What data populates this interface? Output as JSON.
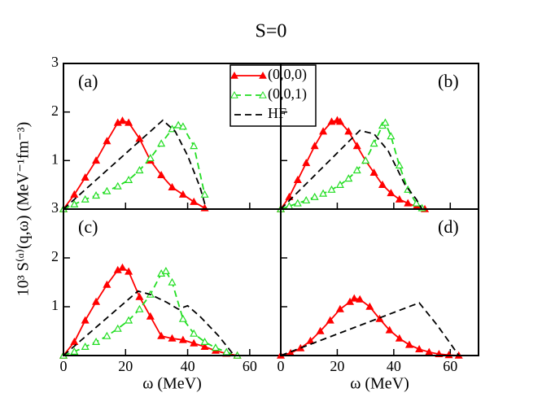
{
  "title": "S=0",
  "ylabel": "10³ S⁽ᵅ⁾(q,ω) (MeV⁻¹fm⁻³)",
  "chart_data": [
    {
      "type": "line",
      "label": "(a)",
      "xlim": [
        0,
        70
      ],
      "ylim": [
        0,
        3
      ],
      "xticks": [
        0,
        20,
        40,
        60
      ],
      "yticks": [
        1,
        2,
        3
      ],
      "show_xtick_labels": false,
      "show_ytick_labels": true,
      "legend": "upper center",
      "series": [
        {
          "name": "(0,0,0)",
          "color": "#ff0000",
          "dash": "solid",
          "marker": "filled-triangle",
          "x": [
            0,
            3.5,
            7,
            10.5,
            14,
            17.5,
            19,
            21,
            24.5,
            28,
            31.5,
            35,
            38.5,
            42,
            45.5
          ],
          "values": [
            0,
            0.3,
            0.65,
            1.0,
            1.4,
            1.78,
            1.82,
            1.78,
            1.45,
            1.0,
            0.7,
            0.45,
            0.3,
            0.15,
            0.02
          ]
        },
        {
          "name": "(0,0,1)",
          "color": "#22dd22",
          "dash": "dashed",
          "marker": "open-triangle",
          "x": [
            0,
            3.5,
            7,
            10.5,
            14,
            17.5,
            21,
            24.5,
            28,
            31.5,
            35,
            37,
            38.5,
            42,
            45.5
          ],
          "values": [
            0,
            0.1,
            0.2,
            0.28,
            0.37,
            0.47,
            0.6,
            0.8,
            1.05,
            1.35,
            1.65,
            1.73,
            1.7,
            1.3,
            0.3
          ]
        },
        {
          "name": "HF",
          "color": "#000000",
          "dash": "dashed",
          "marker": "none",
          "x": [
            0,
            32,
            36,
            40,
            44,
            46
          ],
          "values": [
            0,
            1.83,
            1.6,
            1.1,
            0.45,
            0
          ]
        }
      ]
    },
    {
      "type": "line",
      "label": "(b)",
      "xlim": [
        0,
        70
      ],
      "ylim": [
        0,
        3
      ],
      "xticks": [
        0,
        20,
        40,
        60
      ],
      "yticks": [
        1,
        2,
        3
      ],
      "show_xtick_labels": false,
      "show_ytick_labels": false,
      "series": [
        {
          "color": "#ff0000",
          "dash": "solid",
          "marker": "filled-triangle",
          "x": [
            0,
            3,
            6,
            9,
            12,
            15,
            18,
            20,
            21,
            24,
            27,
            30,
            33,
            36,
            39,
            42,
            45,
            48,
            51
          ],
          "values": [
            0,
            0.25,
            0.6,
            0.95,
            1.3,
            1.6,
            1.8,
            1.83,
            1.8,
            1.6,
            1.3,
            1.0,
            0.75,
            0.5,
            0.33,
            0.2,
            0.12,
            0.05,
            0.0
          ]
        },
        {
          "color": "#22dd22",
          "dash": "dashed",
          "marker": "open-triangle",
          "x": [
            0,
            3,
            6,
            9,
            12,
            15,
            18,
            21,
            24,
            27,
            30,
            33,
            36,
            37,
            39,
            42,
            45,
            48,
            50
          ],
          "values": [
            0,
            0.06,
            0.12,
            0.18,
            0.25,
            0.32,
            0.4,
            0.5,
            0.63,
            0.8,
            1.0,
            1.35,
            1.72,
            1.78,
            1.5,
            0.9,
            0.4,
            0.12,
            0.02
          ]
        },
        {
          "color": "#000000",
          "dash": "dashed",
          "marker": "none",
          "x": [
            0,
            28,
            33,
            38,
            44,
            48,
            50
          ],
          "values": [
            0,
            1.62,
            1.55,
            1.2,
            0.5,
            0.2,
            0
          ]
        }
      ]
    },
    {
      "type": "line",
      "label": "(c)",
      "xlabel": "ω (MeV)",
      "xlim": [
        0,
        70
      ],
      "ylim": [
        0,
        3
      ],
      "xticks": [
        0,
        20,
        40,
        60
      ],
      "yticks": [
        1,
        2,
        3
      ],
      "show_xtick_labels": true,
      "show_ytick_labels": true,
      "series": [
        {
          "color": "#ff0000",
          "dash": "solid",
          "marker": "filled-triangle",
          "x": [
            0,
            3.5,
            7,
            10.5,
            14,
            17.5,
            19,
            21,
            24.5,
            28,
            31.5,
            35,
            38.5,
            42,
            45.5,
            49,
            52.5,
            56
          ],
          "values": [
            0,
            0.28,
            0.72,
            1.1,
            1.45,
            1.75,
            1.8,
            1.72,
            1.2,
            0.8,
            0.4,
            0.35,
            0.32,
            0.25,
            0.18,
            0.1,
            0.04,
            0
          ]
        },
        {
          "color": "#22dd22",
          "dash": "dashed",
          "marker": "open-triangle",
          "x": [
            0,
            3.5,
            7,
            10.5,
            14,
            17.5,
            21,
            24.5,
            28,
            31.5,
            33,
            35,
            38.5,
            42,
            45.5,
            49,
            52.5,
            56
          ],
          "values": [
            0,
            0.08,
            0.18,
            0.28,
            0.4,
            0.55,
            0.72,
            0.95,
            1.25,
            1.68,
            1.73,
            1.5,
            0.75,
            0.45,
            0.28,
            0.16,
            0.07,
            0
          ]
        },
        {
          "color": "#000000",
          "dash": "dashed",
          "marker": "none",
          "x": [
            0,
            24,
            28,
            33,
            37,
            40,
            44,
            50,
            55
          ],
          "values": [
            0,
            1.32,
            1.25,
            1.1,
            0.95,
            1.02,
            0.8,
            0.4,
            0
          ]
        }
      ]
    },
    {
      "type": "line",
      "label": "(d)",
      "xlabel": "ω (MeV)",
      "xlim": [
        0,
        70
      ],
      "ylim": [
        0,
        3
      ],
      "xticks": [
        0,
        20,
        40,
        60
      ],
      "yticks": [
        1,
        2,
        3
      ],
      "show_xtick_labels": true,
      "show_ytick_labels": false,
      "series": [
        {
          "color": "#ff0000",
          "dash": "solid",
          "marker": "filled-triangle",
          "x": [
            0,
            3.5,
            7,
            10.5,
            14,
            17.5,
            21,
            24.5,
            26,
            28,
            31.5,
            35,
            38.5,
            42,
            45.5,
            49,
            52.5,
            56,
            59.5,
            63
          ],
          "values": [
            0,
            0.05,
            0.15,
            0.3,
            0.5,
            0.72,
            0.95,
            1.1,
            1.17,
            1.15,
            1.0,
            0.75,
            0.52,
            0.35,
            0.22,
            0.13,
            0.07,
            0.03,
            0.01,
            0
          ]
        },
        {
          "color": "#000000",
          "dash": "dashed",
          "marker": "none",
          "x": [
            0,
            49,
            55,
            60,
            63
          ],
          "values": [
            0,
            1.08,
            0.65,
            0.25,
            0
          ]
        }
      ]
    }
  ]
}
